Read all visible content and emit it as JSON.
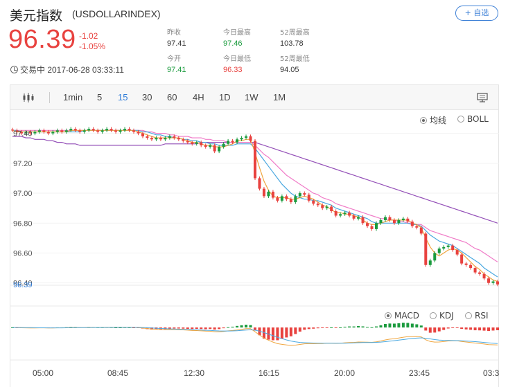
{
  "header": {
    "name_cn": "美元指数",
    "code": "(USDOLLARINDEX)",
    "add_button": "+ 自选",
    "price": "96.39",
    "change": "-1.02",
    "change_pct": "-1.05%",
    "status": "交易中 2017-06-28 03:33:11",
    "stats": [
      {
        "label": "昨收",
        "value": "97.41",
        "tone": "neutral"
      },
      {
        "label": "今日最高",
        "value": "97.46",
        "tone": "up"
      },
      {
        "label": "52周最高",
        "value": "103.78",
        "tone": "neutral"
      },
      {
        "label": "今开",
        "value": "97.41",
        "tone": "up"
      },
      {
        "label": "今日最低",
        "value": "96.33",
        "tone": "down"
      },
      {
        "label": "52周最低",
        "value": "94.05",
        "tone": "neutral"
      }
    ]
  },
  "toolbar": {
    "tabs": [
      "1min",
      "5",
      "15",
      "30",
      "60",
      "4H",
      "1D",
      "1W",
      "1M"
    ],
    "active_tab": "15"
  },
  "overlay_options": [
    {
      "label": "均线",
      "selected": true
    },
    {
      "label": "BOLL",
      "selected": false
    }
  ],
  "indicator_options": [
    {
      "label": "MACD",
      "selected": true
    },
    {
      "label": "KDJ",
      "selected": false
    },
    {
      "label": "RSI",
      "selected": false
    }
  ],
  "colors": {
    "up": "#1b9b3e",
    "down": "#e8423f",
    "ma_short": "#f0a640",
    "ma_mid": "#4aa8e0",
    "ma_long": "#f07cc8",
    "ma_longest": "#9450b8",
    "accent": "#2d7bd8"
  },
  "chart_data": {
    "type": "candlestick",
    "ylim": [
      96.38,
      97.44
    ],
    "y_ticks": [
      "97.40",
      "97.20",
      "97.00",
      "96.80",
      "96.60",
      "96.40"
    ],
    "x_ticks": [
      "05:00",
      "08:45",
      "12:30",
      "16:15",
      "20:00",
      "23:45",
      "03:3"
    ],
    "last_price_label": "96.39",
    "closes": [
      97.42,
      97.41,
      97.4,
      97.41,
      97.4,
      97.41,
      97.42,
      97.41,
      97.4,
      97.41,
      97.42,
      97.41,
      97.42,
      97.43,
      97.42,
      97.41,
      97.42,
      97.43,
      97.42,
      97.41,
      97.42,
      97.43,
      97.42,
      97.41,
      97.42,
      97.43,
      97.42,
      97.41,
      97.4,
      97.38,
      97.37,
      97.36,
      97.37,
      97.36,
      97.37,
      97.38,
      97.37,
      97.36,
      97.35,
      97.34,
      97.33,
      97.34,
      97.32,
      97.31,
      97.32,
      97.28,
      97.31,
      97.33,
      97.35,
      97.34,
      97.36,
      97.37,
      97.38,
      97.35,
      97.1,
      97.03,
      96.98,
      97.01,
      96.97,
      96.95,
      96.98,
      96.96,
      96.94,
      96.98,
      97.0,
      96.99,
      96.95,
      96.93,
      96.92,
      96.9,
      96.91,
      96.88,
      96.85,
      96.86,
      96.87,
      96.85,
      96.83,
      96.84,
      96.8,
      96.78,
      96.76,
      96.8,
      96.82,
      96.84,
      96.82,
      96.8,
      96.82,
      96.83,
      96.81,
      96.78,
      96.77,
      96.73,
      96.52,
      96.55,
      96.6,
      96.63,
      96.64,
      96.65,
      96.62,
      96.59,
      96.53,
      96.52,
      96.5,
      96.47,
      96.46,
      96.43,
      96.4,
      96.41,
      96.39
    ],
    "ma_short": [
      97.42,
      97.41,
      97.41,
      97.41,
      97.41,
      97.41,
      97.41,
      97.41,
      97.41,
      97.41,
      97.41,
      97.41,
      97.41,
      97.42,
      97.42,
      97.42,
      97.42,
      97.42,
      97.42,
      97.42,
      97.42,
      97.42,
      97.42,
      97.42,
      97.42,
      97.42,
      97.42,
      97.42,
      97.41,
      97.4,
      97.39,
      97.38,
      97.37,
      97.37,
      97.37,
      97.37,
      97.37,
      97.37,
      97.36,
      97.35,
      97.34,
      97.34,
      97.33,
      97.32,
      97.32,
      97.31,
      97.31,
      97.31,
      97.32,
      97.33,
      97.35,
      97.35,
      97.36,
      97.36,
      97.27,
      97.17,
      97.08,
      97.02,
      96.98,
      96.97,
      96.97,
      96.97,
      96.96,
      96.96,
      96.97,
      96.98,
      96.97,
      96.96,
      96.94,
      96.92,
      96.91,
      96.89,
      96.87,
      96.87,
      96.86,
      96.86,
      96.85,
      96.84,
      96.82,
      96.8,
      96.79,
      96.79,
      96.8,
      96.81,
      96.82,
      96.82,
      96.82,
      96.82,
      96.82,
      96.8,
      96.79,
      96.77,
      96.7,
      96.64,
      96.6,
      96.58,
      96.6,
      96.62,
      96.63,
      96.62,
      96.6,
      96.57,
      96.54,
      96.51,
      96.49,
      96.46,
      96.44,
      96.42,
      96.41
    ],
    "ma_mid": [
      97.42,
      97.42,
      97.41,
      97.41,
      97.41,
      97.41,
      97.41,
      97.41,
      97.41,
      97.41,
      97.41,
      97.41,
      97.41,
      97.41,
      97.41,
      97.41,
      97.42,
      97.42,
      97.42,
      97.42,
      97.42,
      97.42,
      97.42,
      97.42,
      97.42,
      97.42,
      97.42,
      97.42,
      97.42,
      97.41,
      97.41,
      97.4,
      97.39,
      97.39,
      97.38,
      97.38,
      97.37,
      97.37,
      97.36,
      97.36,
      97.35,
      97.35,
      97.34,
      97.34,
      97.33,
      97.33,
      97.32,
      97.32,
      97.32,
      97.32,
      97.33,
      97.33,
      97.33,
      97.33,
      97.3,
      97.26,
      97.22,
      97.18,
      97.14,
      97.1,
      97.06,
      97.03,
      97.0,
      96.98,
      96.97,
      96.96,
      96.96,
      96.95,
      96.95,
      96.94,
      96.93,
      96.92,
      96.9,
      96.89,
      96.88,
      96.87,
      96.86,
      96.85,
      96.84,
      96.83,
      96.81,
      96.8,
      96.8,
      96.8,
      96.8,
      96.8,
      96.8,
      96.8,
      96.8,
      96.79,
      96.79,
      96.78,
      96.75,
      96.72,
      96.7,
      96.68,
      96.67,
      96.66,
      96.65,
      96.63,
      96.61,
      96.59,
      96.57,
      96.55,
      96.53,
      96.5,
      96.48,
      96.46,
      96.44
    ],
    "ma_long": [
      97.42,
      97.42,
      97.42,
      97.42,
      97.42,
      97.42,
      97.42,
      97.42,
      97.42,
      97.42,
      97.42,
      97.42,
      97.42,
      97.42,
      97.42,
      97.42,
      97.42,
      97.42,
      97.42,
      97.42,
      97.42,
      97.42,
      97.42,
      97.42,
      97.42,
      97.42,
      97.42,
      97.42,
      97.42,
      97.42,
      97.41,
      97.41,
      97.4,
      97.4,
      97.4,
      97.39,
      97.39,
      97.38,
      97.38,
      97.38,
      97.37,
      97.37,
      97.37,
      97.36,
      97.36,
      97.35,
      97.35,
      97.35,
      97.34,
      97.34,
      97.34,
      97.34,
      97.34,
      97.34,
      97.32,
      97.29,
      97.26,
      97.24,
      97.21,
      97.18,
      97.15,
      97.12,
      97.1,
      97.08,
      97.06,
      97.04,
      97.02,
      97.0,
      96.99,
      96.97,
      96.96,
      96.95,
      96.93,
      96.92,
      96.91,
      96.9,
      96.89,
      96.88,
      96.87,
      96.86,
      96.85,
      96.84,
      96.83,
      96.83,
      96.82,
      96.82,
      96.81,
      96.81,
      96.8,
      96.8,
      96.79,
      96.79,
      96.77,
      96.75,
      96.74,
      96.73,
      96.72,
      96.71,
      96.7,
      96.69,
      96.68,
      96.67,
      96.65,
      96.63,
      96.62,
      96.6,
      96.58,
      96.56,
      96.54
    ],
    "ma_longest": [
      97.38,
      97.38,
      97.38,
      97.37,
      97.37,
      97.36,
      97.36,
      97.36,
      97.35,
      97.35,
      97.34,
      97.34,
      97.33,
      97.33,
      97.33,
      97.32,
      97.32,
      97.32,
      97.32,
      97.32,
      97.32,
      97.32,
      97.32,
      97.32,
      97.32,
      97.32,
      97.32,
      97.32,
      97.32,
      97.32,
      97.32,
      97.32,
      97.32,
      97.32,
      97.33,
      97.33,
      97.33,
      97.33,
      97.33,
      97.33,
      97.33,
      97.33,
      97.34,
      97.34,
      97.34,
      97.34,
      97.34,
      97.34,
      97.34,
      97.34,
      97.34,
      97.34,
      97.34,
      97.34,
      97.34,
      97.33,
      97.32,
      97.31,
      97.3,
      97.29,
      97.28,
      97.27,
      97.26,
      97.25,
      97.24,
      97.23,
      97.22,
      97.21,
      97.2,
      97.19,
      97.18,
      97.17,
      97.16,
      97.15,
      97.14,
      97.13,
      97.12,
      97.11,
      97.1,
      97.09,
      97.08,
      97.07,
      97.06,
      97.05,
      97.04,
      97.03,
      97.02,
      97.01,
      97.0,
      96.99,
      96.98,
      96.97,
      96.96,
      96.95,
      96.94,
      96.93,
      96.92,
      96.91,
      96.9,
      96.89,
      96.88,
      96.87,
      96.86,
      96.85,
      96.84,
      96.83,
      96.82,
      96.81,
      96.8
    ]
  }
}
